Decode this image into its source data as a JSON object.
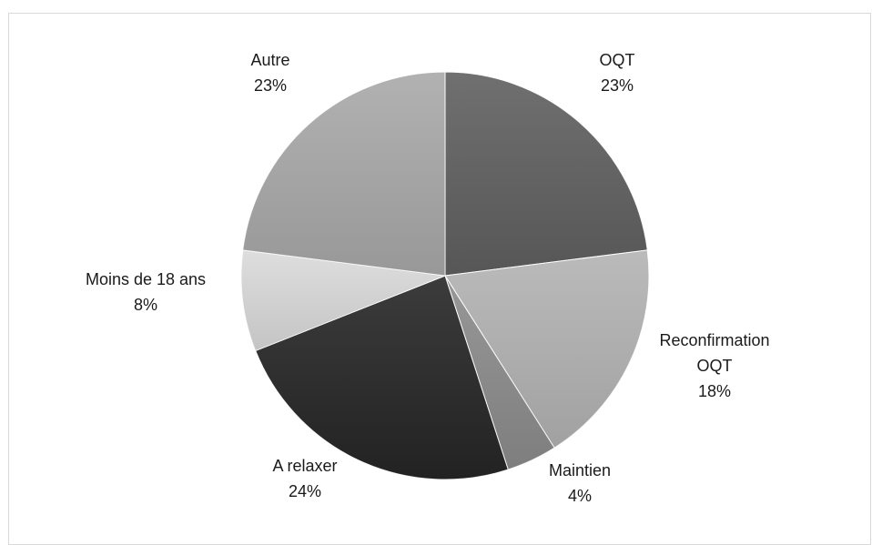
{
  "chart_data": {
    "type": "pie",
    "title": "",
    "labels": [
      "OQT",
      "Reconfirmation OQT",
      "Maintien",
      "A relaxer",
      "Moins de 18 ans",
      "Autre"
    ],
    "label_lines": [
      [
        "OQT"
      ],
      [
        "Reconfirmation",
        "OQT"
      ],
      [
        "Maintien"
      ],
      [
        "A relaxer"
      ],
      [
        "Moins de 18 ans"
      ],
      [
        "Autre"
      ]
    ],
    "values": [
      23,
      18,
      4,
      24,
      8,
      23
    ],
    "value_labels": [
      "23%",
      "18%",
      "4%",
      "24%",
      "8%",
      "23%"
    ],
    "legend": "none",
    "colors": [
      "#606060",
      "#b3b3b3",
      "#8c8c8c",
      "#262626",
      "#dadada",
      "#a9a9a9"
    ]
  }
}
